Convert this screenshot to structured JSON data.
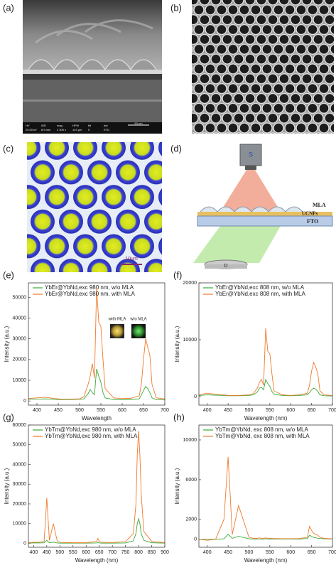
{
  "figure": {
    "a": {
      "label": "(a)",
      "info": [
        "HV",
        "WD",
        "mag",
        "HFW",
        "tilt",
        "det"
      ],
      "info_values": [
        "20.00 kV",
        "8.9 mm",
        "2 000 x",
        "149 µm",
        "0",
        "ETD"
      ],
      "scale": "50 µm"
    },
    "b": {
      "label": "(b)"
    },
    "c": {
      "label": "(c)",
      "scale": "10μm"
    },
    "d": {
      "label": "(d)",
      "source": "S",
      "mla": "MLA",
      "ucnps": "UCNPs",
      "fto": "FTO",
      "detector": "D"
    }
  },
  "chart_data": [
    {
      "type": "line",
      "label": "(e)",
      "xlabel": "Wavelength",
      "ylabel": "Intensity (a.u.)",
      "legend": "upper left",
      "inset_labels": [
        "with MLA",
        "w/o MLA"
      ],
      "xlim": [
        380,
        700
      ],
      "ylim": [
        -2000,
        57000
      ],
      "xticks": [
        400,
        450,
        500,
        550,
        600,
        650,
        700
      ],
      "yticks": [
        0,
        10000,
        20000,
        30000,
        40000,
        50000
      ],
      "x": [
        380,
        400,
        420,
        440,
        450,
        460,
        475,
        500,
        510,
        520,
        525,
        530,
        535,
        540,
        545,
        550,
        555,
        560,
        580,
        600,
        620,
        640,
        645,
        650,
        655,
        660,
        665,
        670,
        680,
        700
      ],
      "series": [
        {
          "name": "YbEr@YbNd,exc 980 nm, w/o MLA",
          "color": "#3aa935",
          "values": [
            800,
            900,
            1000,
            800,
            700,
            700,
            700,
            800,
            1000,
            3500,
            5500,
            4000,
            3000,
            15500,
            12000,
            9000,
            4000,
            1500,
            700,
            600,
            700,
            1000,
            3000,
            5000,
            7000,
            6000,
            4000,
            1500,
            600,
            500
          ]
        },
        {
          "name": "YbEr@YbNd,exc 980 nm, with MLA",
          "color": "#f07a2a",
          "values": [
            1200,
            1500,
            1800,
            1200,
            1000,
            900,
            900,
            1000,
            2000,
            8000,
            12000,
            18000,
            11000,
            55000,
            38000,
            36000,
            20000,
            6000,
            1500,
            1200,
            1300,
            2500,
            8000,
            20000,
            30000,
            26000,
            22000,
            8000,
            1500,
            1000
          ]
        }
      ]
    },
    {
      "type": "line",
      "label": "(f)",
      "xlabel": "Wavelength (nm)",
      "ylabel": "Intensity (a.u.)",
      "legend": "upper left",
      "xlim": [
        380,
        700
      ],
      "ylim": [
        -1500,
        20000
      ],
      "xticks": [
        400,
        450,
        500,
        550,
        600,
        650,
        700
      ],
      "yticks": [
        0,
        10000,
        20000
      ],
      "x": [
        380,
        400,
        420,
        440,
        450,
        460,
        475,
        500,
        510,
        520,
        525,
        530,
        535,
        540,
        545,
        550,
        555,
        560,
        580,
        600,
        620,
        640,
        645,
        650,
        655,
        660,
        665,
        670,
        680,
        700
      ],
      "series": [
        {
          "name": "YbEr@YbNd,exc 808 nm, w/o MLA",
          "color": "#3aa935",
          "values": [
            200,
            300,
            250,
            200,
            150,
            150,
            150,
            200,
            300,
            800,
            1500,
            1600,
            1200,
            3000,
            2300,
            1800,
            900,
            400,
            200,
            150,
            200,
            300,
            700,
            1200,
            1500,
            1300,
            900,
            300,
            150,
            100
          ]
        },
        {
          "name": "YbEr@YbNd,exc 808 nm, with MLA",
          "color": "#f07a2a",
          "values": [
            300,
            600,
            400,
            300,
            200,
            200,
            200,
            300,
            500,
            1500,
            2500,
            3000,
            2000,
            12000,
            8000,
            7500,
            4000,
            1000,
            300,
            200,
            300,
            600,
            2000,
            4500,
            6000,
            5200,
            4000,
            1000,
            300,
            200
          ]
        }
      ]
    },
    {
      "type": "line",
      "label": "(g)",
      "xlabel": "Wavelength (nm)",
      "ylabel": "Intensity (a.u.)",
      "legend": "upper left",
      "xlim": [
        380,
        900
      ],
      "ylim": [
        -2000,
        60000
      ],
      "xticks": [
        400,
        450,
        500,
        550,
        600,
        650,
        700,
        750,
        800,
        850,
        900
      ],
      "yticks": [
        0,
        10000,
        20000,
        30000,
        40000,
        50000,
        60000
      ],
      "x": [
        380,
        400,
        420,
        440,
        450,
        460,
        475,
        490,
        500,
        550,
        600,
        640,
        645,
        650,
        660,
        700,
        750,
        780,
        790,
        795,
        800,
        805,
        810,
        820,
        850,
        900
      ],
      "series": [
        {
          "name": "YbTm@YbNd,exc 980 nm, w/o MLA",
          "color": "#3aa935",
          "values": [
            100,
            200,
            200,
            300,
            1500,
            300,
            600,
            200,
            100,
            100,
            100,
            200,
            400,
            200,
            100,
            100,
            200,
            1200,
            5000,
            10000,
            12500,
            10000,
            5000,
            1500,
            300,
            100
          ]
        },
        {
          "name": "YbTm@YbNd,exc 980 nm, with MLA",
          "color": "#f07a2a",
          "values": [
            300,
            500,
            500,
            1000,
            23000,
            1500,
            10000,
            1000,
            500,
            300,
            300,
            1000,
            2500,
            1000,
            500,
            400,
            800,
            5000,
            20000,
            45000,
            57000,
            45000,
            25000,
            6000,
            1000,
            300
          ]
        }
      ]
    },
    {
      "type": "line",
      "label": "(h)",
      "xlabel": "Wavelength (nm)",
      "ylabel": "Intensity (a.u.)",
      "legend": "upper left",
      "xlim": [
        380,
        700
      ],
      "ylim": [
        -800,
        11500
      ],
      "xticks": [
        400,
        450,
        500,
        550,
        600,
        650,
        700
      ],
      "yticks": [
        0,
        2000,
        6000,
        10000
      ],
      "x": [
        380,
        400,
        420,
        440,
        450,
        460,
        475,
        500,
        510,
        520,
        525,
        530,
        535,
        540,
        545,
        550,
        555,
        560,
        580,
        600,
        620,
        640,
        645,
        650,
        655,
        660,
        665,
        670,
        680,
        700
      ],
      "series": [
        {
          "name": "YbTm@YbNd, exc 808 nm, w/o MLA",
          "color": "#3aa935",
          "values": [
            0,
            0,
            0,
            50,
            500,
            100,
            300,
            50,
            30,
            30,
            30,
            30,
            30,
            50,
            30,
            30,
            30,
            30,
            30,
            30,
            30,
            80,
            400,
            300,
            200,
            150,
            100,
            80,
            50,
            30
          ]
        },
        {
          "name": "YbTm@YbNd, exc 808 nm, with MLA",
          "color": "#f07a2a",
          "values": [
            0,
            -100,
            0,
            2000,
            8300,
            500,
            3400,
            200,
            100,
            100,
            150,
            100,
            100,
            150,
            100,
            100,
            80,
            80,
            60,
            60,
            80,
            200,
            1300,
            900,
            600,
            500,
            400,
            200,
            100,
            50
          ]
        }
      ]
    }
  ]
}
